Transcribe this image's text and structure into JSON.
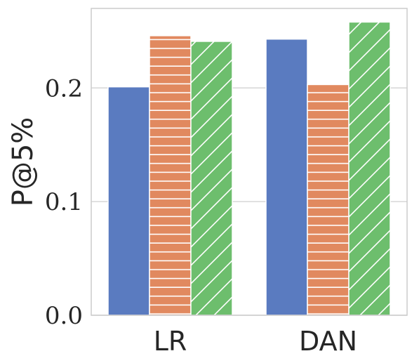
{
  "chart_data": {
    "type": "bar",
    "categories": [
      "LR",
      "DAN"
    ],
    "ylabel": "P@5%",
    "ylim": [
      0,
      0.27
    ],
    "yticks": [
      "0.0",
      "0.1",
      "0.2"
    ],
    "ytick_values": [
      0.0,
      0.1,
      0.2
    ],
    "grid": true,
    "series": [
      {
        "values": [
          0.201,
          0.243
        ],
        "color": "#5a7bc0",
        "hatch": "none"
      },
      {
        "values": [
          0.246,
          0.203
        ],
        "color": "#e1895f",
        "hatch": "horizontal"
      },
      {
        "values": [
          0.241,
          0.258
        ],
        "color": "#6dbe6d",
        "hatch": "diagonal"
      }
    ]
  }
}
